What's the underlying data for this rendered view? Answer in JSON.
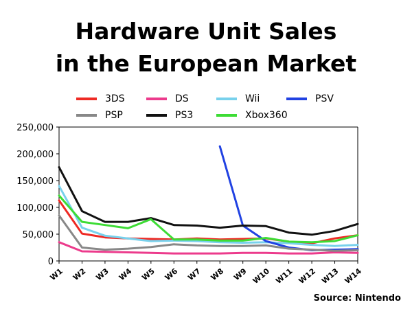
{
  "chart_data": {
    "type": "line",
    "title_lines": [
      "Hardware Unit Sales",
      "in the European Market"
    ],
    "source": "Source: Nintendo",
    "categories": [
      "W1",
      "W2",
      "W3",
      "W4",
      "W5",
      "W6",
      "W7",
      "W8",
      "W9",
      "W10",
      "W11",
      "W12",
      "W13",
      "W14"
    ],
    "y_ticks": [
      "0",
      "50,000",
      "100,000",
      "150,000",
      "200,000",
      "250,000"
    ],
    "ylim": [
      0,
      250000
    ],
    "grid": false,
    "legend_position": "top",
    "series": [
      {
        "name": "3DS",
        "color": "#ee2a24",
        "values": [
          113000,
          51000,
          44000,
          42000,
          41000,
          40000,
          42000,
          40000,
          41000,
          42000,
          36000,
          33000,
          42000,
          48000
        ]
      },
      {
        "name": "DS",
        "color": "#ec3b8c",
        "values": [
          35000,
          18000,
          17000,
          16000,
          15000,
          14000,
          14000,
          14000,
          15000,
          15000,
          14000,
          14000,
          16000,
          15000
        ]
      },
      {
        "name": "Wii",
        "color": "#78d1ec",
        "values": [
          140000,
          62000,
          47000,
          42000,
          37000,
          38000,
          37000,
          35000,
          34000,
          35000,
          33000,
          30000,
          28000,
          30000
        ]
      },
      {
        "name": "PSV",
        "color": "#2142e2",
        "values": [
          null,
          null,
          null,
          null,
          null,
          null,
          null,
          214000,
          66000,
          37000,
          25000,
          20000,
          21000,
          22000
        ]
      },
      {
        "name": "PSP",
        "color": "#888888",
        "values": [
          85000,
          25000,
          21000,
          23000,
          26000,
          31000,
          29000,
          28000,
          28000,
          29000,
          23000,
          21000,
          19000,
          20000
        ]
      },
      {
        "name": "PS3",
        "color": "#111111",
        "values": [
          175000,
          93000,
          73000,
          73000,
          80000,
          67000,
          66000,
          62000,
          66000,
          65000,
          53000,
          49000,
          56000,
          69000
        ]
      },
      {
        "name": "Xbox360",
        "color": "#3ddc35",
        "values": [
          122000,
          73000,
          67000,
          61000,
          78000,
          40000,
          40000,
          38000,
          38000,
          43000,
          36000,
          35000,
          37000,
          48000
        ]
      }
    ]
  }
}
